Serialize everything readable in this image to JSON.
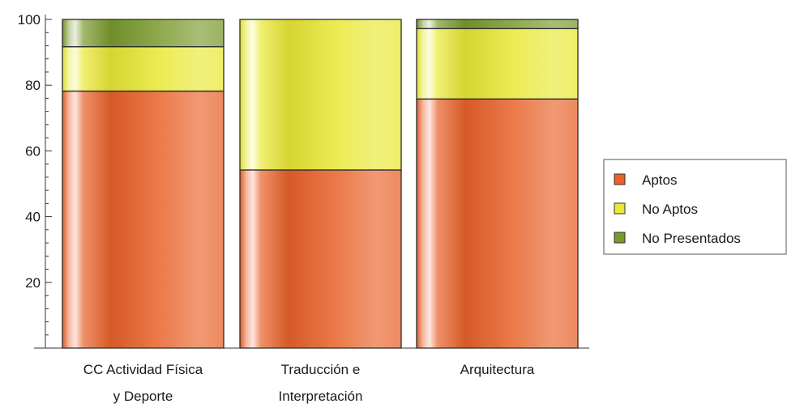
{
  "chart_data": {
    "type": "bar",
    "stacked": true,
    "categories": [
      [
        "CC Actividad Física",
        "y Deporte"
      ],
      [
        "Traducción e",
        "Interpretación"
      ],
      [
        "Arquitectura"
      ]
    ],
    "series": [
      {
        "name": "Aptos",
        "values": [
          78.2,
          54.2,
          75.8
        ],
        "color": "#e8622a"
      },
      {
        "name": "No Aptos",
        "values": [
          13.5,
          45.8,
          21.4
        ],
        "color": "#e9e835"
      },
      {
        "name": "No Presentados",
        "values": [
          8.3,
          0.0,
          2.8
        ],
        "color": "#7a9a2e"
      }
    ],
    "yticks": [
      20,
      40,
      60,
      80,
      100
    ],
    "ylim": [
      0,
      100
    ],
    "legend_position": "right",
    "grid": false
  }
}
